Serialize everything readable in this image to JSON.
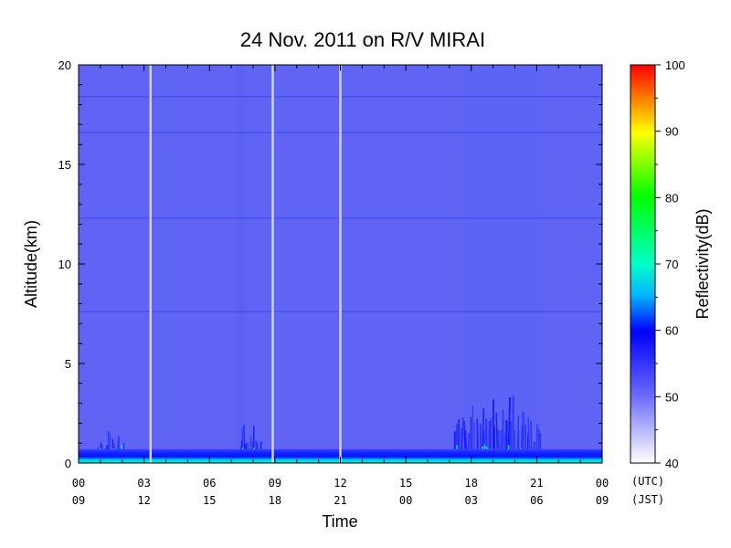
{
  "chart_data": {
    "type": "heatmap",
    "title": "24 Nov. 2011  on R/V MIRAI",
    "xlabel": "Time",
    "ylabel": "Altitude(km)",
    "xlim": [
      0,
      24
    ],
    "ylim": [
      0,
      20
    ],
    "y_ticks": [
      "0",
      "5",
      "10",
      "15",
      "20"
    ],
    "y_tick_values": [
      0,
      5,
      10,
      15,
      20
    ],
    "x_tick_values": [
      0,
      3,
      6,
      9,
      12,
      15,
      18,
      21,
      24
    ],
    "x_ticks_utc": [
      "00",
      "03",
      "06",
      "09",
      "12",
      "15",
      "18",
      "21",
      "00"
    ],
    "x_ticks_jst": [
      "09",
      "12",
      "15",
      "18",
      "21",
      "00",
      "03",
      "06",
      "09"
    ],
    "time_zone_labels": [
      "(UTC)",
      "(JST)"
    ],
    "colorbar": {
      "label": "Reflectivity(dB)",
      "range": [
        40,
        100
      ],
      "ticks": [
        "40",
        "50",
        "60",
        "70",
        "80",
        "90",
        "100"
      ],
      "tick_values": [
        40,
        50,
        60,
        70,
        80,
        90,
        100
      ],
      "colors": [
        "#ffffff",
        "#7070ff",
        "#0000ff",
        "#00ffd0",
        "#00ff00",
        "#ffff00",
        "#ff0000"
      ]
    },
    "background_reflectivity_db": 47,
    "surface_layer": {
      "altitude_km": [
        0,
        0.7
      ],
      "reflectivity_db": [
        51,
        62
      ]
    },
    "data_gaps_utc_hours": [
      3.3,
      8.9,
      12.0
    ],
    "horizontal_artifact_altitudes_km": [
      7.6,
      12.3,
      16.6,
      18.4
    ],
    "echo_regions": [
      {
        "time_utc": [
          0.9,
          2.2
        ],
        "altitude_km": [
          0.3,
          1.7
        ],
        "reflectivity_db": 54
      },
      {
        "time_utc": [
          7.3,
          8.4
        ],
        "altitude_km": [
          0.3,
          2.3
        ],
        "reflectivity_db": 53
      },
      {
        "time_utc": [
          17.2,
          21.2
        ],
        "altitude_km": [
          0.3,
          3.8
        ],
        "reflectivity_db": 56
      }
    ]
  }
}
